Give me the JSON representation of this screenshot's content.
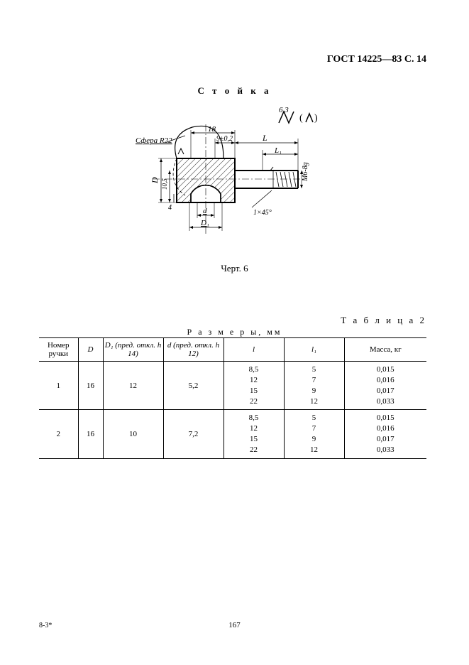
{
  "header": "ГОСТ 14225—83 C. 14",
  "title": "С т о й к а",
  "figure": {
    "caption": "Черт. 6",
    "labels": {
      "sphere": "Сфера R22",
      "top_dim": "18",
      "top_dim2": "9±0,2",
      "L": "L",
      "L1": "L₁",
      "thread": "M6-8g",
      "chamfer": "1×45°",
      "D": "D",
      "D1": "D₁",
      "d": "d",
      "h1": "10,5",
      "h2": "4",
      "roughness": "6,3"
    },
    "stroke": "#000000",
    "fill_hatch": "#000000"
  },
  "table_label": "Т а б л и ц а  2",
  "table_caption": "Р а з м е р ы,  мм",
  "table": {
    "columns": [
      "Номер ручки",
      "D",
      "D₁ (пред. откл. h 14)",
      "d (пред. откл. h 12)",
      "l",
      "l₁",
      "Масса, кг"
    ],
    "col_widths": [
      "55",
      "35",
      "85",
      "85",
      "85",
      "85",
      "116"
    ],
    "rows": [
      {
        "num": "1",
        "D": "16",
        "D1": "12",
        "d": "5,2",
        "l": [
          "8,5",
          "12",
          "15",
          "22"
        ],
        "l1": [
          "5",
          "7",
          "9",
          "12"
        ],
        "mass": [
          "0,015",
          "0,016",
          "0,017",
          "0,033"
        ]
      },
      {
        "num": "2",
        "D": "16",
        "D1": "10",
        "d": "7,2",
        "l": [
          "8,5",
          "12",
          "15",
          "22"
        ],
        "l1": [
          "5",
          "7",
          "9",
          "12"
        ],
        "mass": [
          "0,015",
          "0,016",
          "0,017",
          "0,033"
        ]
      }
    ]
  },
  "signature": "8-3*",
  "page_number": "167"
}
